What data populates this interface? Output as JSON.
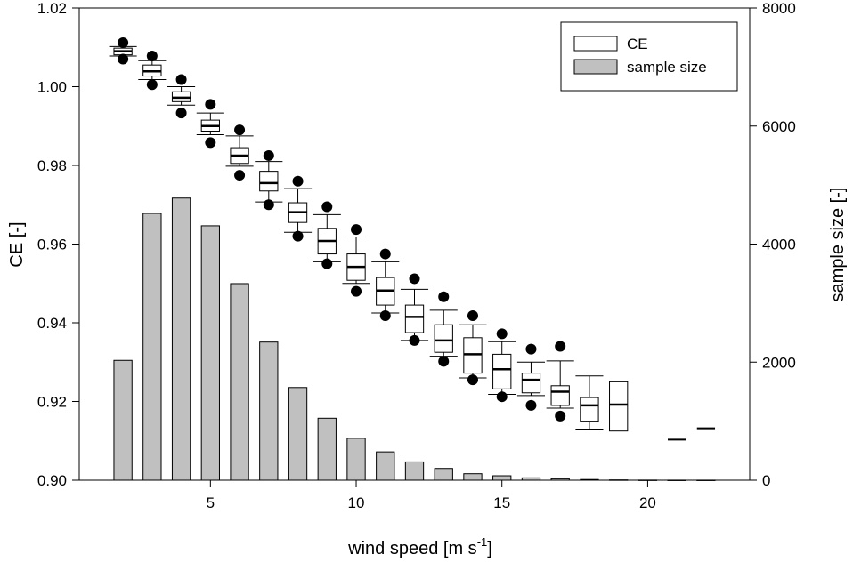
{
  "chart_data": {
    "type": "box+bar",
    "title": "",
    "xlabel": "wind speed [m s",
    "xlabel_sup": "-1",
    "xlabel_end": "]",
    "ylabel_left": "CE [-]",
    "ylabel_right": "sample size [-]",
    "xlim": [
      0.5,
      23.5
    ],
    "ylim_left": [
      0.9,
      1.02
    ],
    "ylim_right": [
      0,
      8000
    ],
    "x_ticks": [
      5,
      10,
      15,
      20
    ],
    "x_tick_labels": [
      "5",
      "10",
      "15",
      "20"
    ],
    "y_left_ticks": [
      0.9,
      0.92,
      0.94,
      0.96,
      0.98,
      1.0,
      1.02
    ],
    "y_left_tick_labels": [
      "0.90",
      "0.92",
      "0.94",
      "0.96",
      "0.98",
      "1.00",
      "1.02"
    ],
    "y_right_ticks": [
      0,
      2000,
      4000,
      6000,
      8000
    ],
    "y_right_tick_labels": [
      "0",
      "2000",
      "4000",
      "6000",
      "8000"
    ],
    "legend": {
      "placement": "top-right",
      "entries": [
        {
          "label": "CE",
          "fill": "#ffffff"
        },
        {
          "label": "sample size",
          "fill": "#c0c0c0"
        }
      ]
    },
    "bar_color": "#c0c0c0",
    "sample_size": {
      "x": [
        2,
        3,
        4,
        5,
        6,
        7,
        8,
        9,
        10,
        11,
        12,
        13,
        14,
        15,
        16,
        17,
        18,
        19,
        20,
        21,
        22
      ],
      "values": [
        2030,
        4520,
        4780,
        4310,
        3330,
        2340,
        1570,
        1050,
        710,
        480,
        310,
        200,
        110,
        75,
        40,
        25,
        12,
        5,
        2,
        1,
        1
      ]
    },
    "ce_boxes": [
      {
        "x": 2,
        "wlo": 1.0078,
        "q1": 1.0081,
        "med": 1.009,
        "q3": 1.0098,
        "whi": 1.0102,
        "out_lo": 1.007,
        "out_hi": 1.0112
      },
      {
        "x": 3,
        "wlo": 1.0018,
        "q1": 1.0027,
        "med": 1.0039,
        "q3": 1.0055,
        "whi": 1.0066,
        "out_lo": 1.0005,
        "out_hi": 1.0078
      },
      {
        "x": 4,
        "wlo": 0.9953,
        "q1": 0.9962,
        "med": 0.9972,
        "q3": 0.9987,
        "whi": 1.0,
        "out_lo": 0.9933,
        "out_hi": 1.0018
      },
      {
        "x": 5,
        "wlo": 0.9878,
        "q1": 0.9887,
        "med": 0.99,
        "q3": 0.9915,
        "whi": 0.9933,
        "out_lo": 0.9858,
        "out_hi": 0.9955
      },
      {
        "x": 6,
        "wlo": 0.9798,
        "q1": 0.9805,
        "med": 0.9825,
        "q3": 0.9845,
        "whi": 0.9875,
        "out_lo": 0.9775,
        "out_hi": 0.989
      },
      {
        "x": 7,
        "wlo": 0.9707,
        "q1": 0.9735,
        "med": 0.9755,
        "q3": 0.9785,
        "whi": 0.981,
        "out_lo": 0.97,
        "out_hi": 0.9825
      },
      {
        "x": 8,
        "wlo": 0.963,
        "q1": 0.9655,
        "med": 0.9681,
        "q3": 0.9705,
        "whi": 0.9741,
        "out_lo": 0.962,
        "out_hi": 0.976
      },
      {
        "x": 9,
        "wlo": 0.9555,
        "q1": 0.9575,
        "med": 0.9608,
        "q3": 0.964,
        "whi": 0.9675,
        "out_lo": 0.955,
        "out_hi": 0.9695
      },
      {
        "x": 10,
        "wlo": 0.95,
        "q1": 0.9508,
        "med": 0.9542,
        "q3": 0.9575,
        "whi": 0.9618,
        "out_lo": 0.948,
        "out_hi": 0.9637
      },
      {
        "x": 11,
        "wlo": 0.9425,
        "q1": 0.9445,
        "med": 0.9482,
        "q3": 0.9515,
        "whi": 0.9555,
        "out_lo": 0.9418,
        "out_hi": 0.9575
      },
      {
        "x": 12,
        "wlo": 0.9355,
        "q1": 0.9375,
        "med": 0.9415,
        "q3": 0.9445,
        "whi": 0.9485,
        "out_lo": 0.9355,
        "out_hi": 0.9512
      },
      {
        "x": 13,
        "wlo": 0.9315,
        "q1": 0.9325,
        "med": 0.9355,
        "q3": 0.9395,
        "whi": 0.9432,
        "out_lo": 0.9302,
        "out_hi": 0.9466
      },
      {
        "x": 14,
        "wlo": 0.926,
        "q1": 0.9272,
        "med": 0.932,
        "q3": 0.9362,
        "whi": 0.9395,
        "out_lo": 0.9255,
        "out_hi": 0.9418
      },
      {
        "x": 15,
        "wlo": 0.9218,
        "q1": 0.9232,
        "med": 0.9282,
        "q3": 0.932,
        "whi": 0.9352,
        "out_lo": 0.9212,
        "out_hi": 0.9372
      },
      {
        "x": 16,
        "wlo": 0.9215,
        "q1": 0.9222,
        "med": 0.9255,
        "q3": 0.9272,
        "whi": 0.93,
        "out_lo": 0.919,
        "out_hi": 0.9333
      },
      {
        "x": 17,
        "wlo": 0.9183,
        "q1": 0.919,
        "med": 0.9225,
        "q3": 0.924,
        "whi": 0.9303,
        "out_lo": 0.9163,
        "out_hi": 0.934
      },
      {
        "x": 18,
        "wlo": 0.913,
        "q1": 0.915,
        "med": 0.919,
        "q3": 0.921,
        "whi": 0.9265,
        "out_lo": null,
        "out_hi": null
      },
      {
        "x": 19,
        "wlo": 0.9125,
        "q1": 0.9125,
        "med": 0.9192,
        "q3": 0.925,
        "whi": 0.925,
        "out_lo": null,
        "out_hi": null
      },
      {
        "x": 21,
        "wlo": 0.9103,
        "q1": 0.9103,
        "med": 0.9103,
        "q3": 0.9103,
        "whi": 0.9103,
        "out_lo": null,
        "out_hi": null
      },
      {
        "x": 22,
        "wlo": 0.9132,
        "q1": 0.9132,
        "med": 0.9132,
        "q3": 0.9132,
        "whi": 0.9132,
        "out_lo": null,
        "out_hi": null
      }
    ]
  }
}
